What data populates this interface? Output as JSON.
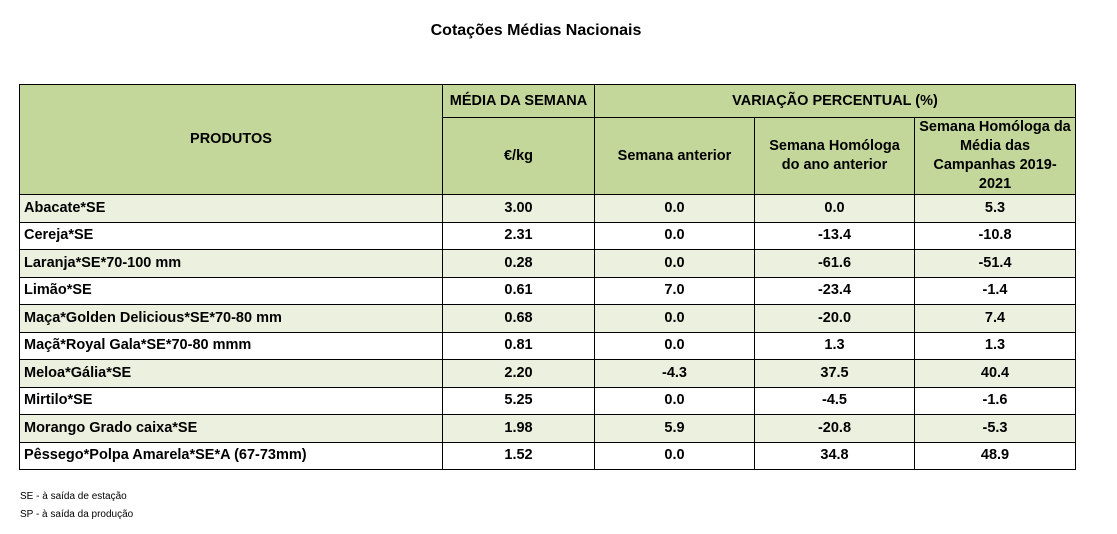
{
  "title": "Cotações Médias Nacionais",
  "header": {
    "products": "PRODUTOS",
    "avg_week": "MÉDIA DA SEMANA",
    "unit": "€/kg",
    "variation": "VARIAÇÃO PERCENTUAL (%)",
    "prev_week": "Semana anterior",
    "same_week_prev_year": "Semana Homóloga do ano anterior",
    "same_week_avg_campaigns": "Semana Homóloga da Média das Campanhas 2019-2021"
  },
  "rows": [
    {
      "product": "Abacate*SE",
      "avg": "3.00",
      "prev": "0.0",
      "year": "0.0",
      "camp": "5.3"
    },
    {
      "product": "Cereja*SE",
      "avg": "2.31",
      "prev": "0.0",
      "year": "-13.4",
      "camp": "-10.8"
    },
    {
      "product": "Laranja*SE*70-100 mm",
      "avg": "0.28",
      "prev": "0.0",
      "year": "-61.6",
      "camp": "-51.4"
    },
    {
      "product": "Limão*SE",
      "avg": "0.61",
      "prev": "7.0",
      "year": "-23.4",
      "camp": "-1.4"
    },
    {
      "product": "Maça*Golden Delicious*SE*70-80 mm",
      "avg": "0.68",
      "prev": "0.0",
      "year": "-20.0",
      "camp": "7.4"
    },
    {
      "product": "Maçã*Royal Gala*SE*70-80 mmm",
      "avg": "0.81",
      "prev": "0.0",
      "year": "1.3",
      "camp": "1.3"
    },
    {
      "product": "Meloa*Gália*SE",
      "avg": "2.20",
      "prev": "-4.3",
      "year": "37.5",
      "camp": "40.4"
    },
    {
      "product": "Mirtilo*SE",
      "avg": "5.25",
      "prev": "0.0",
      "year": "-4.5",
      "camp": "-1.6"
    },
    {
      "product": "Morango Grado caixa*SE",
      "avg": "1.98",
      "prev": "5.9",
      "year": "-20.8",
      "camp": "-5.3"
    },
    {
      "product": "Pêssego*Polpa Amarela*SE*A (67-73mm)",
      "avg": "1.52",
      "prev": "0.0",
      "year": "34.8",
      "camp": "48.9"
    }
  ],
  "notes": [
    "SE - à saída de estação",
    "SP - à saída da produção"
  ],
  "colors": {
    "header_bg": "#c4d79b",
    "stripe_bg": "#ebf1de"
  }
}
